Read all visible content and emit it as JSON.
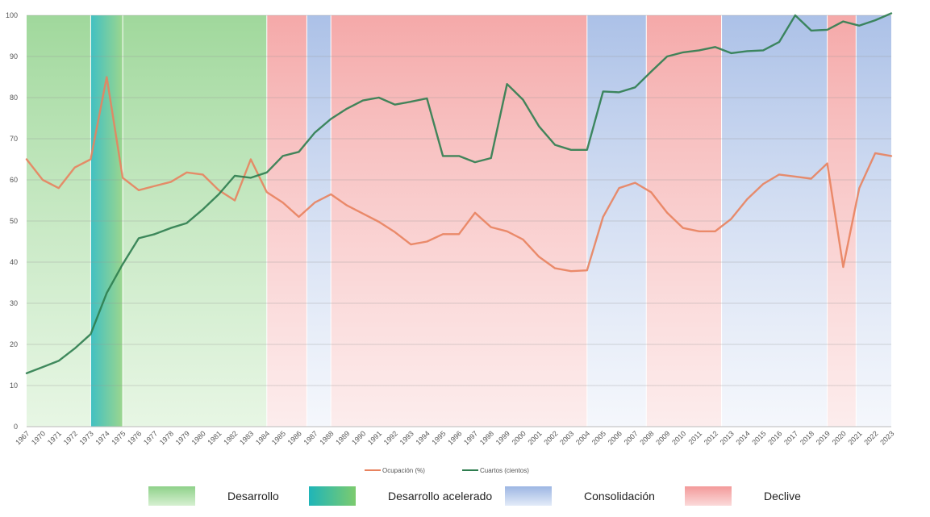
{
  "chart_data": {
    "type": "line",
    "title": "",
    "xlabel": "",
    "ylabel": "",
    "ylim": [
      0,
      100
    ],
    "yticks": [
      0,
      10,
      20,
      30,
      40,
      50,
      60,
      70,
      80,
      90,
      100
    ],
    "grid": true,
    "legend_position": "bottom-center",
    "x": [
      "1967",
      "1970",
      "1971",
      "1972",
      "1973",
      "1974",
      "1975",
      "1976",
      "1977",
      "1978",
      "1979",
      "1980",
      "1981",
      "1982",
      "1983",
      "1984",
      "1985",
      "1986",
      "1987",
      "1988",
      "1989",
      "1990",
      "1991",
      "1992",
      "1993",
      "1994",
      "1995",
      "1996",
      "1997",
      "1998",
      "1999",
      "2000",
      "2001",
      "2002",
      "2003",
      "2004",
      "2005",
      "2006",
      "2007",
      "2008",
      "2009",
      "2010",
      "2011",
      "2012",
      "2013",
      "2014",
      "2015",
      "2016",
      "2017",
      "2018",
      "2019",
      "2020",
      "2021",
      "2022",
      "2023"
    ],
    "series": [
      {
        "name": "Ocupación (%)",
        "color": "#E8825E",
        "values": [
          65,
          60,
          58,
          63,
          65,
          85,
          60.5,
          57.5,
          58.5,
          59.5,
          61.8,
          61.3,
          57.5,
          55,
          65,
          57,
          54.5,
          51,
          54.5,
          56.5,
          53.8,
          51.8,
          49.8,
          47.3,
          44.3,
          45,
          46.8,
          46.8,
          52,
          48.5,
          47.5,
          45.5,
          41.3,
          38.5,
          37.8,
          38,
          51,
          58,
          59.3,
          57,
          52,
          48.3,
          47.5,
          47.5,
          50.5,
          55.3,
          59,
          61.3,
          60.8,
          60.3,
          64,
          38.8,
          58,
          66.5,
          65.8
        ]
      },
      {
        "name": "Cuartos (cientos)",
        "color": "#2E7D4F",
        "values": [
          13,
          14.5,
          16,
          19,
          22.5,
          32.5,
          39.5,
          45.8,
          46.8,
          48.3,
          49.5,
          52.8,
          56.5,
          61,
          60.5,
          61.8,
          65.8,
          66.8,
          71.5,
          74.8,
          77.3,
          79.3,
          80,
          78.3,
          79,
          79.8,
          65.8,
          65.8,
          64.3,
          65.3,
          83.3,
          79.5,
          73,
          68.5,
          67.3,
          67.3,
          81.5,
          81.3,
          82.5,
          86.3,
          90,
          91,
          91.5,
          92.3,
          90.8,
          91.3,
          91.5,
          93.5,
          100,
          96.3,
          96.5,
          98.5,
          97.5,
          98.8,
          100.5
        ]
      }
    ],
    "phases": [
      {
        "type": "Desarrollo",
        "start": 0,
        "end": 4
      },
      {
        "type": "Desarrollo acelerado",
        "start": 4,
        "end": 6
      },
      {
        "type": "Desarrollo",
        "start": 6,
        "end": 15
      },
      {
        "type": "Declive",
        "start": 15,
        "end": 17.5
      },
      {
        "type": "Consolidación",
        "start": 17.5,
        "end": 19
      },
      {
        "type": "Declive",
        "start": 19,
        "end": 35
      },
      {
        "type": "Consolidación",
        "start": 35,
        "end": 38.7
      },
      {
        "type": "Declive",
        "start": 38.7,
        "end": 43.4
      },
      {
        "type": "Consolidación",
        "start": 43.4,
        "end": 50
      },
      {
        "type": "Declive",
        "start": 50,
        "end": 51.8
      },
      {
        "type": "Consolidación",
        "start": 51.8,
        "end": 54
      }
    ],
    "phase_legend": [
      {
        "label": "Desarrollo",
        "key": "Desarrollo",
        "color_top": "#8FD18A",
        "color_bottom": "#D7F0D2"
      },
      {
        "label": "Desarrollo acelerado",
        "key": "Desarrollo acelerado",
        "color_top": "#1FB5B8",
        "color_bottom": "#7CCB6E"
      },
      {
        "label": "Consolidación",
        "key": "Consolidación",
        "color_top": "#9DB6E3",
        "color_bottom": "#E3EBF8"
      },
      {
        "label": "Declive",
        "key": "Declive",
        "color_top": "#F39A9A",
        "color_bottom": "#FBDADA"
      }
    ]
  }
}
